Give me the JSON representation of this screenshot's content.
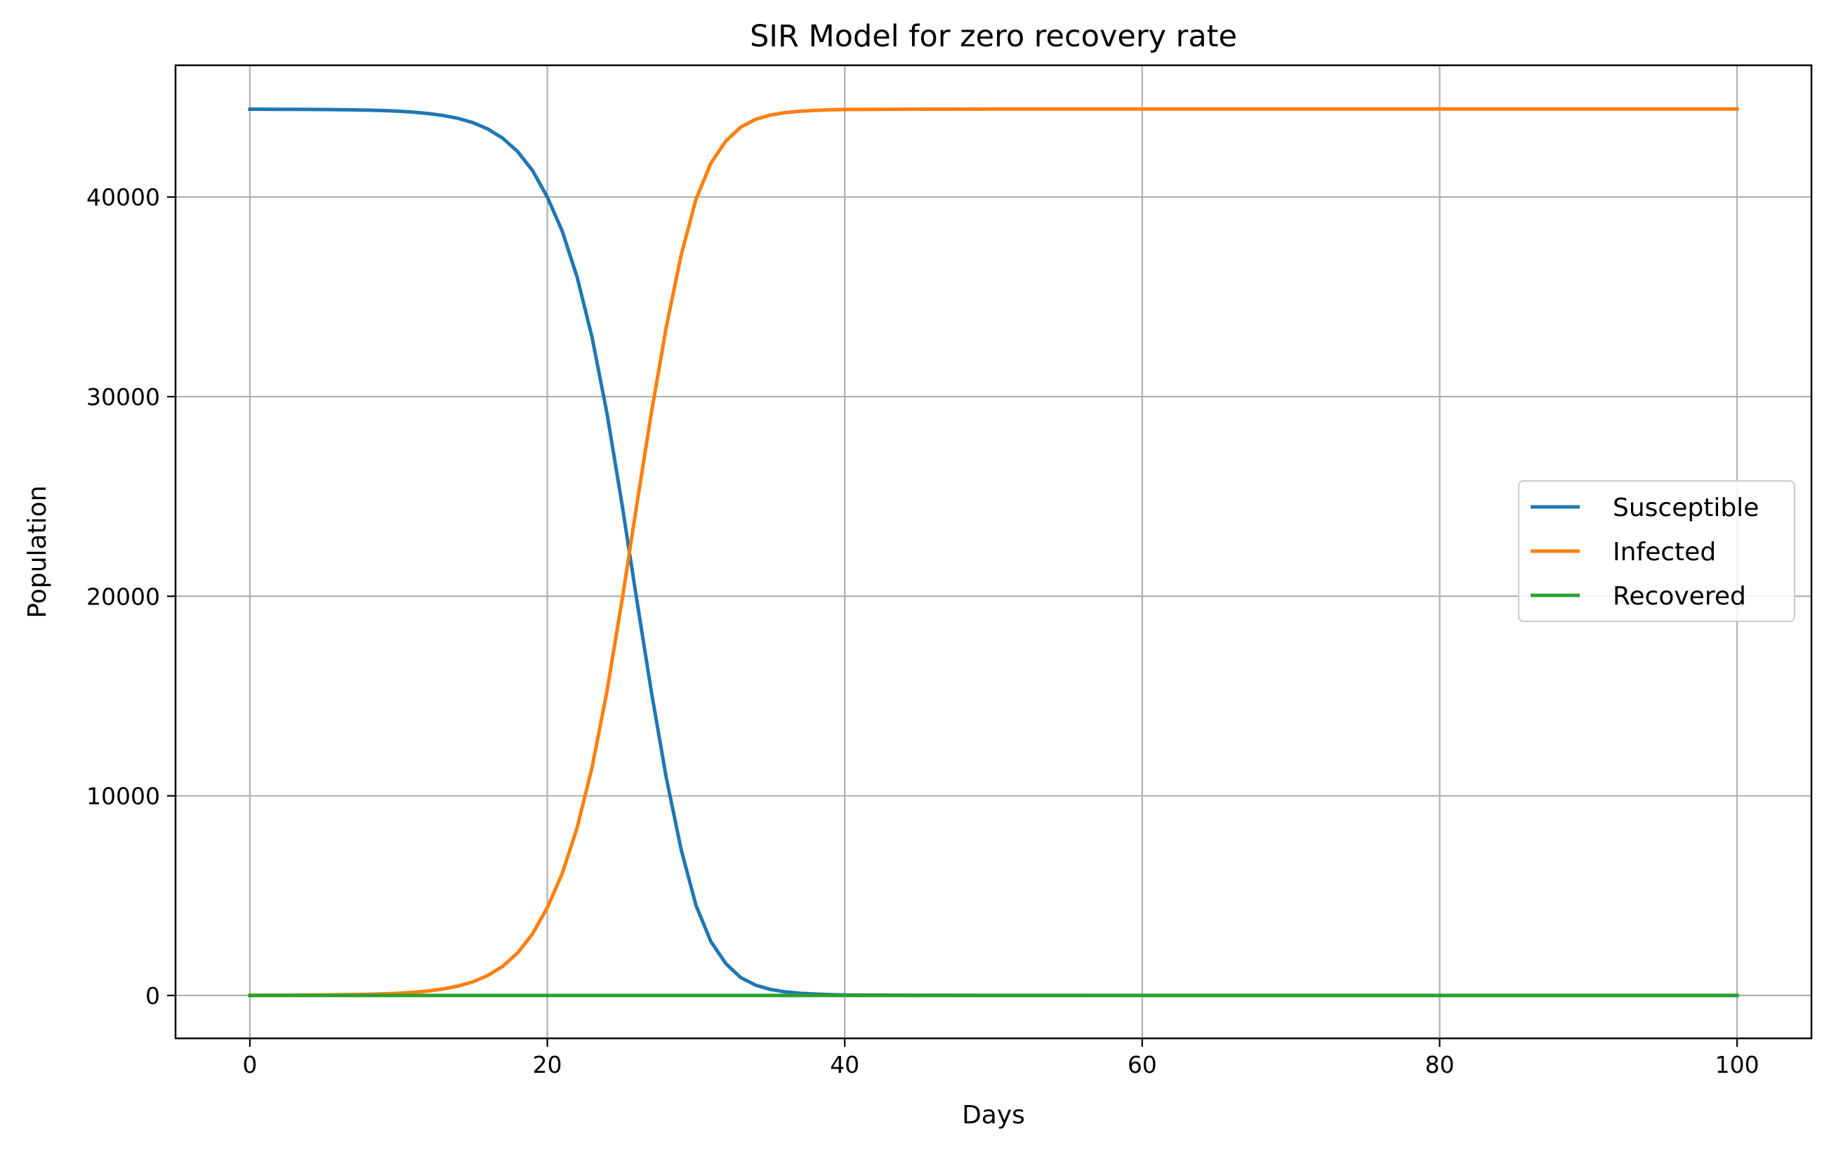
{
  "chart_data": {
    "type": "line",
    "title": "SIR Model for zero recovery rate",
    "xlabel": "Days",
    "ylabel": "Population",
    "xlim": [
      -5,
      105
    ],
    "ylim": [
      -2150,
      46600
    ],
    "xticks": [
      0,
      20,
      40,
      60,
      80,
      100
    ],
    "yticks": [
      0,
      10000,
      20000,
      30000,
      40000
    ],
    "grid": true,
    "legend_position": "center-right",
    "x": [
      0,
      1,
      2,
      3,
      4,
      5,
      6,
      7,
      8,
      9,
      10,
      11,
      12,
      13,
      14,
      15,
      16,
      17,
      18,
      19,
      20,
      21,
      22,
      23,
      24,
      25,
      26,
      27,
      28,
      29,
      30,
      31,
      32,
      33,
      34,
      35,
      36,
      37,
      38,
      39,
      40,
      45,
      50,
      55,
      60,
      65,
      70,
      75,
      80,
      85,
      90,
      95,
      100
    ],
    "series": [
      {
        "name": "Susceptible",
        "color": "#1f77b4",
        "values": [
          44400,
          44398,
          44396,
          44393,
          44389,
          44384,
          44376,
          44366,
          44351,
          44330,
          44298,
          44252,
          44185,
          44085,
          43940,
          43727,
          43410,
          42950,
          42280,
          41330,
          40000,
          38300,
          36000,
          33000,
          29200,
          24700,
          19900,
          15200,
          10900,
          7300,
          4500,
          2700,
          1600,
          900,
          520,
          300,
          180,
          110,
          70,
          40,
          25,
          8,
          3,
          1,
          0,
          0,
          0,
          0,
          0,
          0,
          0,
          0,
          0
        ]
      },
      {
        "name": "Infected",
        "color": "#ff7f0e",
        "values": [
          10,
          12,
          14,
          17,
          21,
          26,
          34,
          44,
          59,
          80,
          112,
          158,
          225,
          325,
          470,
          683,
          1000,
          1460,
          2130,
          3080,
          4400,
          6100,
          8400,
          11400,
          15200,
          19700,
          24500,
          29200,
          33500,
          37100,
          39900,
          41700,
          42800,
          43500,
          43890,
          44110,
          44230,
          44300,
          44340,
          44370,
          44385,
          44402,
          44407,
          44409,
          44410,
          44410,
          44410,
          44410,
          44410,
          44410,
          44410,
          44410,
          44410
        ]
      },
      {
        "name": "Recovered",
        "color": "#2ca02c",
        "values": [
          0,
          0,
          0,
          0,
          0,
          0,
          0,
          0,
          0,
          0,
          0,
          0,
          0,
          0,
          0,
          0,
          0,
          0,
          0,
          0,
          0,
          0,
          0,
          0,
          0,
          0,
          0,
          0,
          0,
          0,
          0,
          0,
          0,
          0,
          0,
          0,
          0,
          0,
          0,
          0,
          0,
          0,
          0,
          0,
          0,
          0,
          0,
          0,
          0,
          0,
          0,
          0,
          0
        ]
      }
    ]
  }
}
